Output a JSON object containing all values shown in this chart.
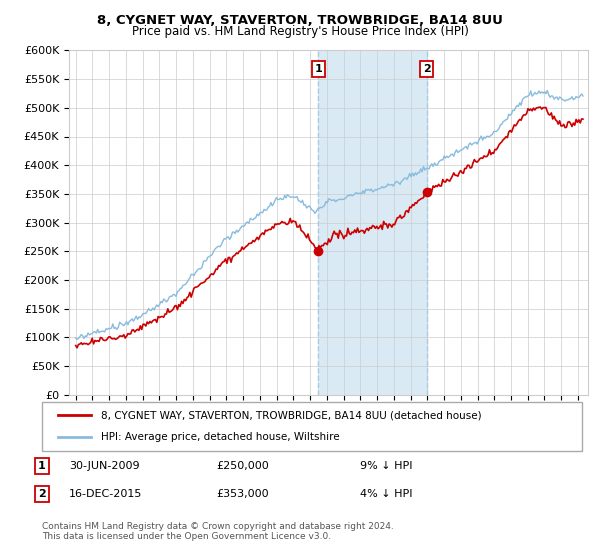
{
  "title1": "8, CYGNET WAY, STAVERTON, TROWBRIDGE, BA14 8UU",
  "title2": "Price paid vs. HM Land Registry's House Price Index (HPI)",
  "ylim": [
    0,
    600000
  ],
  "yticks": [
    0,
    50000,
    100000,
    150000,
    200000,
    250000,
    300000,
    350000,
    400000,
    450000,
    500000,
    550000,
    600000
  ],
  "xlim_start": 1994.6,
  "xlim_end": 2025.6,
  "transaction1_date": 2009.5,
  "transaction1_price": 250000,
  "transaction2_date": 2015.96,
  "transaction2_price": 353000,
  "legend_line1": "8, CYGNET WAY, STAVERTON, TROWBRIDGE, BA14 8UU (detached house)",
  "legend_line2": "HPI: Average price, detached house, Wiltshire",
  "note1_date": "30-JUN-2009",
  "note1_price": "£250,000",
  "note1_pct": "9% ↓ HPI",
  "note2_date": "16-DEC-2015",
  "note2_price": "£353,000",
  "note2_pct": "4% ↓ HPI",
  "footer": "Contains HM Land Registry data © Crown copyright and database right 2024.\nThis data is licensed under the Open Government Licence v3.0.",
  "color_property": "#cc0000",
  "color_hpi": "#88bbdd",
  "color_shade": "#daeaf5",
  "color_vline": "#aaccdd"
}
